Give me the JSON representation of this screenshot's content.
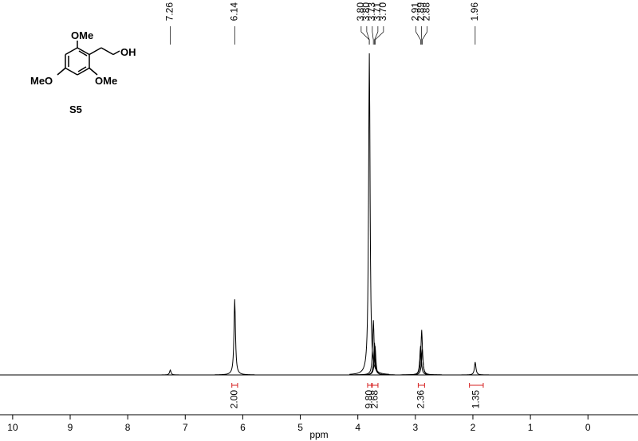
{
  "chart_data": {
    "type": "nmr",
    "x_label": "ppm",
    "xlim": [
      10.22,
      -0.87
    ],
    "xticks": [
      10,
      9,
      8,
      7,
      6,
      5,
      4,
      3,
      2,
      1,
      0
    ],
    "color": "#000000",
    "integral_color": "#d62020",
    "peaks": [
      {
        "ppm": 7.26,
        "intensity": 1.5
      },
      {
        "ppm": 6.14,
        "intensity": 23.5
      },
      {
        "ppm": 3.8,
        "intensity": 100
      },
      {
        "ppm": 3.73,
        "intensity": 17
      },
      {
        "ppm": 3.71,
        "intensity": 10
      },
      {
        "ppm": 3.7,
        "intensity": 9
      },
      {
        "ppm": 2.91,
        "intensity": 9
      },
      {
        "ppm": 2.89,
        "intensity": 14
      },
      {
        "ppm": 2.88,
        "intensity": 8
      },
      {
        "ppm": 1.96,
        "intensity": 4
      }
    ],
    "peak_labels": [
      {
        "value": 7.26,
        "label": "7.26"
      },
      {
        "value": 6.14,
        "label": "6.14"
      },
      {
        "value": 3.8,
        "label": "3.80"
      },
      {
        "value": 3.8,
        "label": "3.80"
      },
      {
        "value": 3.73,
        "label": "3.73"
      },
      {
        "value": 3.71,
        "label": "3.71"
      },
      {
        "value": 3.7,
        "label": "3.70"
      },
      {
        "value": 2.91,
        "label": "2.91"
      },
      {
        "value": 2.89,
        "label": "2.89"
      },
      {
        "value": 2.88,
        "label": "2.88"
      },
      {
        "value": 1.96,
        "label": "1.96"
      }
    ],
    "integrals": [
      {
        "from": 6.19,
        "to": 6.09,
        "value": 2,
        "label": "2.00"
      },
      {
        "from": 3.83,
        "to": 3.76,
        "value": 9.8,
        "label": "9.80"
      },
      {
        "from": 3.75,
        "to": 3.65,
        "value": 2.68,
        "label": "2.68"
      },
      {
        "from": 2.95,
        "to": 2.84,
        "value": 2.36,
        "label": "2.36"
      },
      {
        "from": 2.06,
        "to": 1.82,
        "value": 1.35,
        "label": "1.35"
      }
    ]
  },
  "structure": {
    "substituents": [
      "OMe",
      "OH",
      "MeO",
      "OMe"
    ],
    "compound": "S5"
  }
}
